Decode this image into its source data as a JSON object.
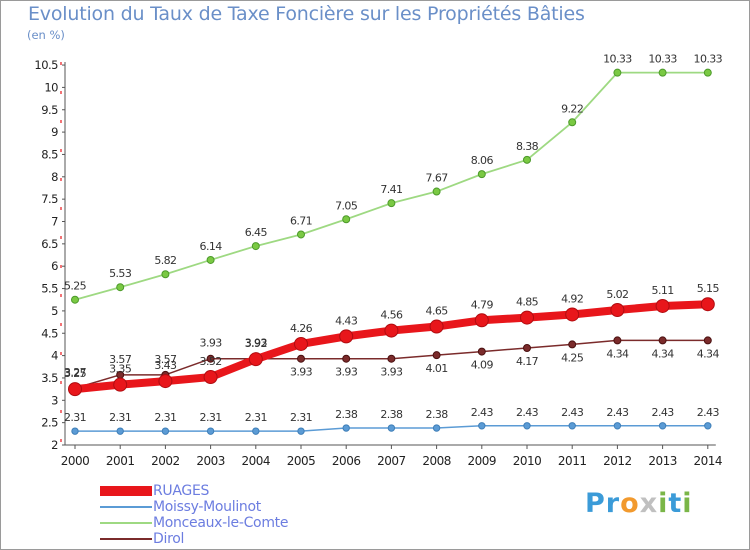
{
  "title": "Evolution du Taux de Taxe Foncière sur les Propriétés Bâties",
  "unit_label": "(en %)",
  "logo": {
    "letters": [
      "P",
      "r",
      "o",
      "x",
      "i",
      "t",
      "i"
    ],
    "colors": [
      "#3b9bd8",
      "#3b9bd8",
      "#f29a2e",
      "#c0c0c0",
      "#7ab648",
      "#3b9bd8",
      "#7ab648"
    ]
  },
  "chart_data": {
    "type": "line",
    "title": "Evolution du Taux de Taxe Foncière sur les Propriétés Bâties",
    "ylabel": "(en %)",
    "xlabel": "",
    "x": [
      "2000",
      "2001",
      "2002",
      "2003",
      "2004",
      "2005",
      "2006",
      "2007",
      "2008",
      "2009",
      "2010",
      "2011",
      "2012",
      "2013",
      "2014"
    ],
    "ylim": [
      2,
      10.5
    ],
    "yticks": [
      "2",
      "2.5",
      "3",
      "3.5",
      "4",
      "4.5",
      "5",
      "5.5",
      "6",
      "6.5",
      "7",
      "7.5",
      "8",
      "8.5",
      "9",
      "9.5",
      "10",
      "10.5"
    ],
    "grid": false,
    "legend_position": "bottom-left",
    "series": [
      {
        "name": "RUAGES",
        "color": "#e8161b",
        "values": [
          3.25,
          3.35,
          3.43,
          3.52,
          3.92,
          4.26,
          4.43,
          4.56,
          4.65,
          4.79,
          4.85,
          4.92,
          5.02,
          5.11,
          5.15
        ],
        "labels": [
          "3.25",
          "3.35",
          "3.43",
          "3.52",
          "3.92",
          "4.26",
          "4.43",
          "4.56",
          "4.65",
          "4.79",
          "4.85",
          "4.92",
          "5.02",
          "5.11",
          "5.15"
        ]
      },
      {
        "name": "Moissy-Moulinot",
        "color": "#5b9bd5",
        "values": [
          2.31,
          2.31,
          2.31,
          2.31,
          2.31,
          2.31,
          2.38,
          2.38,
          2.38,
          2.43,
          2.43,
          2.43,
          2.43,
          2.43,
          2.43
        ],
        "labels": [
          "2.31",
          "2.31",
          "2.31",
          "2.31",
          "2.31",
          "2.31",
          "2.38",
          "2.38",
          "2.38",
          "2.43",
          "2.43",
          "2.43",
          "2.43",
          "2.43",
          "2.43"
        ]
      },
      {
        "name": "Monceaux-le-Comte",
        "color": "#8fd16e",
        "values": [
          5.25,
          5.53,
          5.82,
          6.14,
          6.45,
          6.71,
          7.05,
          7.41,
          7.67,
          8.06,
          8.38,
          9.22,
          10.33,
          10.33,
          10.33
        ],
        "labels": [
          "5.25",
          "5.53",
          "5.82",
          "6.14",
          "6.45",
          "6.71",
          "7.05",
          "7.41",
          "7.67",
          "8.06",
          "8.38",
          "9.22",
          "10.33",
          "10.33",
          "10.33"
        ]
      },
      {
        "name": "Dirol",
        "color": "#7b2b2b",
        "values": [
          3.27,
          3.57,
          3.57,
          3.93,
          3.93,
          3.93,
          3.93,
          3.93,
          4.01,
          4.09,
          4.17,
          4.25,
          4.34,
          4.34,
          4.34
        ],
        "labels": [
          "3.27",
          "3.57",
          "3.57",
          "3.93",
          "3.93",
          "3.93",
          "3.93",
          "3.93",
          "4.01",
          "4.09",
          "4.17",
          "4.25",
          "4.34",
          "4.34",
          "4.34"
        ]
      }
    ]
  }
}
